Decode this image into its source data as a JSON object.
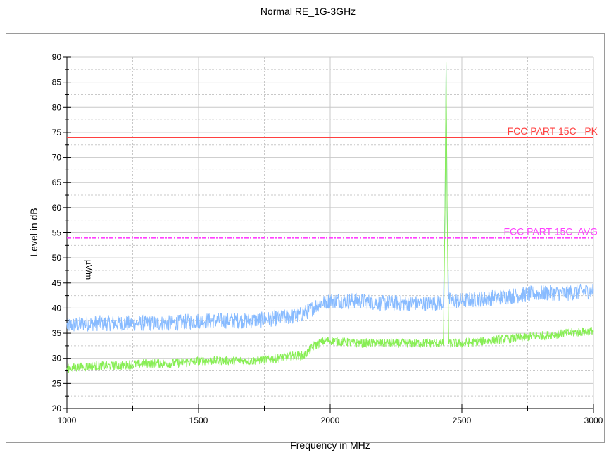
{
  "chart_data": {
    "type": "line",
    "title": "Normal RE_1G-3GHz",
    "xlabel": "Frequency in MHz",
    "ylabel": "Level in dB",
    "ylabel_unit": "µV/m",
    "xlim": [
      1000,
      3000
    ],
    "ylim": [
      20,
      90
    ],
    "x_ticks": [
      1000,
      1500,
      2000,
      2500,
      3000
    ],
    "y_ticks": [
      20,
      25,
      30,
      35,
      40,
      45,
      50,
      55,
      60,
      65,
      70,
      75,
      80,
      85,
      90
    ],
    "grid": true,
    "limit_lines": [
      {
        "name": "FCC PART 15C   PK",
        "y": 74,
        "color": "#ff4040",
        "style": "solid"
      },
      {
        "name": "FCC PART 15C  AVG",
        "y": 54,
        "color": "#ff40ff",
        "style": "dashed"
      }
    ],
    "series": [
      {
        "color": "#88bbff",
        "x": [
          1000,
          1100,
          1200,
          1300,
          1400,
          1500,
          1600,
          1700,
          1800,
          1880,
          1920,
          1960,
          2000,
          2100,
          2200,
          2300,
          2400,
          2430,
          2436,
          2440,
          2444,
          2450,
          2500,
          2600,
          2700,
          2800,
          2900,
          3000
        ],
        "y": [
          36.5,
          37,
          37,
          37,
          37,
          37.5,
          37.5,
          37.5,
          38,
          38.5,
          39.5,
          41,
          41.5,
          41.5,
          41,
          41,
          41,
          41,
          60,
          88.5,
          60,
          41.5,
          41.5,
          42,
          42.5,
          43,
          43,
          43.5
        ]
      },
      {
        "color": "#88ee55",
        "x": [
          1000,
          1100,
          1200,
          1300,
          1400,
          1500,
          1600,
          1700,
          1800,
          1860,
          1900,
          1940,
          1980,
          2000,
          2100,
          2200,
          2300,
          2400,
          2430,
          2436,
          2440,
          2444,
          2450,
          2500,
          2600,
          2700,
          2800,
          2900,
          3000
        ],
        "y": [
          28,
          28.5,
          28.5,
          29,
          29,
          29.5,
          29.5,
          29.5,
          30,
          30.5,
          30.5,
          32.5,
          33.5,
          33.5,
          33,
          33,
          33,
          33,
          33,
          60,
          89,
          60,
          33,
          33,
          33.5,
          34,
          34.5,
          35,
          35.5
        ]
      }
    ]
  }
}
